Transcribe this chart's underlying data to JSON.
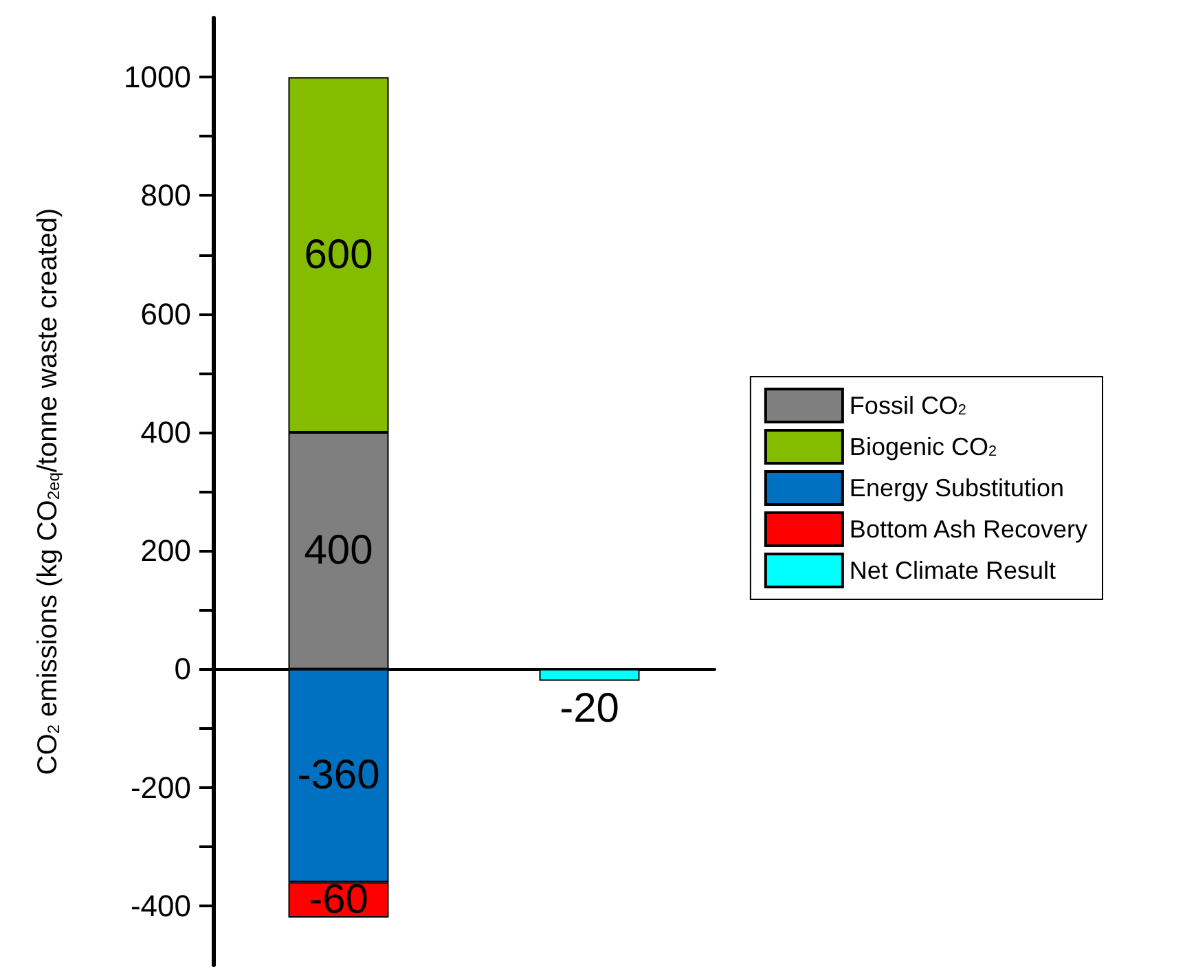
{
  "chart_data": {
    "type": "bar",
    "stacked": true,
    "ylabel": "CO$_{2}$ emissions (kg CO$_{2eq}$/tonne waste created)",
    "categories": [
      null,
      null
    ],
    "series": [
      {
        "name": "Fossil CO$_{2}$",
        "color": "#7f7f7f",
        "values": [
          400,
          null
        ]
      },
      {
        "name": "Biogenic CO$_{2}$",
        "color": "#84bd00",
        "values": [
          600,
          null
        ]
      },
      {
        "name": "Energy Substitution",
        "color": "#0070c0",
        "values": [
          -360,
          null
        ]
      },
      {
        "name": "Bottom Ash Recovery",
        "color": "#ff0000",
        "values": [
          -60,
          null
        ]
      },
      {
        "name": "Net Climate Result",
        "color": "#00ffff",
        "values": [
          null,
          -20
        ]
      }
    ],
    "ylim": [
      -500,
      1100
    ],
    "yticks": [
      -400,
      {
        "value": -300,
        "label": null
      },
      -200,
      {
        "value": -100,
        "label": null
      },
      0,
      {
        "value": 100,
        "label": null
      },
      200,
      {
        "value": 300,
        "label": null
      },
      400,
      {
        "value": 500,
        "label": null
      },
      600,
      {
        "value": 700,
        "label": null
      },
      800,
      {
        "value": 900,
        "label": null
      },
      1000
    ],
    "data_labels": true,
    "legend": "right"
  }
}
